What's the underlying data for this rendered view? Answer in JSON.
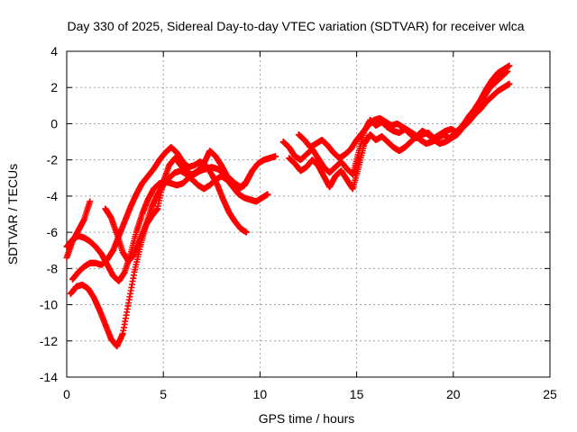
{
  "chart_data": {
    "type": "scatter",
    "title": "Day 330 of 2025, Sidereal Day-to-day VTEC variation (SDTVAR) for receiver wlca",
    "xlabel": "GPS time / hours",
    "ylabel": "SDTVAR / TECUs",
    "xlim": [
      0,
      25
    ],
    "ylim": [
      -14,
      4
    ],
    "xticks": [
      0,
      5,
      10,
      15,
      20,
      25
    ],
    "yticks": [
      -14,
      -12,
      -10,
      -8,
      -6,
      -4,
      -2,
      0,
      2,
      4
    ],
    "grid": true,
    "marker": "+",
    "color": "#ff0000",
    "series": [
      {
        "x": [
          0,
          0.3,
          0.6,
          0.9,
          1.2,
          1.5,
          1.8,
          2.1,
          2.4,
          2.7,
          3.0,
          3.3,
          3.6,
          3.9,
          4.2,
          4.5,
          4.8,
          5.1,
          5.4,
          5.7,
          6.0,
          6.3,
          6.6,
          6.9,
          7.2,
          7.5,
          7.8,
          8.1,
          8.4,
          8.7,
          9.0,
          9.3,
          9.6,
          9.9,
          10.2,
          10.5,
          10.8
        ],
        "y": [
          -6.8,
          -6.4,
          -6.2,
          -6.3,
          -6.5,
          -6.8,
          -7.2,
          -7.8,
          -8.4,
          -8.7,
          -8.2,
          -7.2,
          -6.0,
          -5.0,
          -4.2,
          -3.6,
          -3.3,
          -3.2,
          -3.3,
          -3.4,
          -3.3,
          -3.0,
          -2.8,
          -2.6,
          -2.5,
          -2.4,
          -2.5,
          -2.7,
          -3.0,
          -3.3,
          -3.5,
          -3.2,
          -2.6,
          -2.2,
          -2.0,
          -1.9,
          -1.8
        ]
      },
      {
        "x": [
          0.2,
          0.5,
          0.8,
          1.1,
          1.4,
          1.7,
          2.0,
          2.3,
          2.6,
          2.9,
          3.2,
          3.5,
          3.8,
          4.1,
          4.4,
          4.7,
          5.0,
          5.3,
          5.6,
          5.9,
          6.2,
          6.5,
          6.8,
          7.1,
          7.4,
          7.7,
          8.0,
          8.3,
          8.6,
          8.9,
          9.2,
          9.5,
          9.8,
          10.1,
          10.4
        ],
        "y": [
          -9.4,
          -9.0,
          -8.9,
          -9.1,
          -9.6,
          -10.3,
          -11.1,
          -11.9,
          -12.3,
          -11.6,
          -9.9,
          -8.2,
          -6.8,
          -5.6,
          -4.6,
          -3.9,
          -3.4,
          -3.0,
          -2.7,
          -2.6,
          -2.8,
          -3.1,
          -3.4,
          -3.6,
          -3.4,
          -3.1,
          -2.9,
          -3.1,
          -3.5,
          -3.9,
          -4.1,
          -4.2,
          -4.3,
          -4.1,
          -3.9
        ]
      },
      {
        "x": [
          0.3,
          0.6,
          0.9,
          1.2,
          1.5,
          1.8,
          2.1,
          2.4,
          2.7,
          3.0,
          3.3,
          3.6,
          3.9,
          4.2,
          4.5,
          4.8,
          5.1,
          5.4,
          5.7,
          6.0,
          6.3,
          6.6,
          6.9,
          7.2,
          7.5,
          7.8,
          8.1,
          8.4,
          8.7,
          9.0,
          9.3
        ],
        "y": [
          -8.6,
          -8.2,
          -7.9,
          -7.7,
          -7.7,
          -7.8,
          -7.5,
          -7.0,
          -6.2,
          -5.4,
          -4.6,
          -3.9,
          -3.3,
          -2.9,
          -2.5,
          -2.0,
          -1.6,
          -1.3,
          -1.6,
          -2.1,
          -2.4,
          -2.3,
          -2.1,
          -2.3,
          -2.8,
          -3.4,
          -4.2,
          -4.9,
          -5.4,
          -5.8,
          -6.0
        ]
      },
      {
        "x": [
          0,
          0.3,
          0.6,
          0.9,
          1.2,
          2.0,
          2.3,
          2.6,
          2.9,
          3.2,
          3.5,
          3.8,
          4.1,
          4.4,
          4.7,
          5.0,
          5.3,
          5.6,
          5.9,
          6.2,
          6.5,
          6.8,
          7.1,
          7.4,
          7.7,
          8.0,
          8.3,
          8.6,
          8.9,
          9.2,
          9.5
        ],
        "y": [
          -7.4,
          -6.5,
          -5.9,
          -5.3,
          -4.3,
          -4.7,
          -5.2,
          -6.1,
          -7.1,
          -7.6,
          -7.2,
          -6.4,
          -5.6,
          -5.1,
          -4.7,
          -3.2,
          -2.3,
          -1.9,
          -2.3,
          -2.7,
          -2.8,
          -2.6,
          -2.2,
          -1.5,
          -1.8,
          -2.3,
          -2.9,
          -3.2,
          -3.6,
          -3.4,
          -2.8
        ]
      },
      {
        "x": [
          11.2,
          11.5,
          11.8,
          12.1,
          12.4,
          12.7,
          13.0,
          13.3,
          13.6,
          13.9,
          14.2,
          14.5,
          14.8,
          15.1,
          15.4,
          15.7,
          16.0,
          16.3,
          16.6,
          16.9,
          17.2,
          17.5,
          17.8,
          18.1,
          18.4,
          18.7,
          19.0,
          19.3,
          19.6,
          19.9,
          20.2,
          20.5,
          20.8,
          21.1,
          21.4,
          21.7,
          22.0,
          22.3,
          22.6,
          22.9
        ],
        "y": [
          -1.0,
          -1.3,
          -1.8,
          -2.0,
          -1.7,
          -1.4,
          -1.9,
          -2.4,
          -2.7,
          -2.4,
          -2.1,
          -2.5,
          -2.8,
          -1.6,
          -0.4,
          0.2,
          -0.1,
          0.1,
          -0.2,
          -0.4,
          -0.5,
          -0.3,
          -0.6,
          -0.8,
          -0.6,
          -0.5,
          -0.8,
          -0.6,
          -0.4,
          -0.3,
          -0.5,
          -0.1,
          0.4,
          0.8,
          1.3,
          1.9,
          2.4,
          2.8,
          3.0,
          3.2
        ]
      },
      {
        "x": [
          11.5,
          11.8,
          12.1,
          12.4,
          12.7,
          13.0,
          13.3,
          13.6,
          13.9,
          14.2,
          14.5,
          14.8,
          15.1,
          15.4,
          15.7,
          16.0,
          16.3,
          16.6,
          16.9,
          17.2,
          17.5,
          17.8,
          18.1,
          18.4,
          18.7,
          19.0,
          19.3,
          19.6,
          19.9,
          20.2,
          20.5,
          20.8,
          21.1,
          21.4,
          21.7,
          22.0,
          22.3,
          22.6,
          22.9
        ],
        "y": [
          -1.9,
          -2.2,
          -2.6,
          -2.4,
          -2.0,
          -2.3,
          -2.9,
          -3.5,
          -2.9,
          -2.6,
          -3.1,
          -3.6,
          -2.4,
          -1.1,
          -0.6,
          -0.9,
          -0.7,
          -1.0,
          -1.3,
          -1.5,
          -1.3,
          -1.0,
          -0.7,
          -0.4,
          -0.6,
          -0.9,
          -1.1,
          -1.0,
          -0.8,
          -0.6,
          -0.2,
          0.1,
          0.5,
          0.8,
          1.2,
          1.5,
          1.8,
          2.0,
          2.2
        ]
      },
      {
        "x": [
          12.0,
          12.3,
          12.6,
          12.9,
          13.2,
          13.5,
          13.8,
          14.1,
          14.4,
          14.7,
          15.0,
          15.3,
          15.6,
          15.9,
          16.2,
          16.5,
          16.8,
          17.1,
          17.4,
          17.7,
          18.0,
          18.3,
          18.6,
          18.9,
          19.2,
          19.5,
          19.8,
          20.1,
          20.4,
          20.7,
          21.0,
          21.3,
          21.6,
          21.9,
          22.2,
          22.5,
          22.8
        ],
        "y": [
          -0.6,
          -0.9,
          -1.3,
          -1.1,
          -0.9,
          -1.2,
          -1.6,
          -1.9,
          -1.7,
          -1.4,
          -0.9,
          -0.5,
          -0.1,
          0.2,
          0.3,
          0.1,
          -0.1,
          0.0,
          -0.2,
          -0.4,
          -0.6,
          -0.9,
          -1.1,
          -1.0,
          -0.8,
          -0.6,
          -0.8,
          -0.5,
          -0.2,
          0.2,
          0.6,
          1.0,
          1.5,
          2.0,
          2.3,
          2.6,
          2.9
        ]
      }
    ]
  }
}
